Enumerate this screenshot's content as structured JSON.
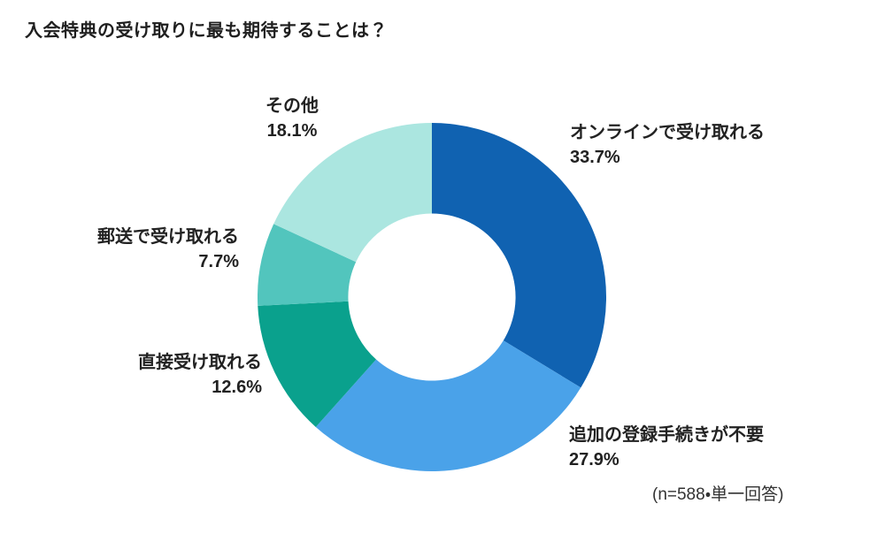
{
  "title": "入会特典の受け取りに最も期待することは？",
  "footnote": "(n=588・単一回答)",
  "chart_data": {
    "type": "pie",
    "variant": "donut",
    "unit": "%",
    "start_angle_deg": -90,
    "direction": "clockwise",
    "inner_radius_ratio": 0.48,
    "total": 100.0,
    "segments": [
      {
        "label": "オンラインで受け取れる",
        "value": 33.7,
        "value_label": "33.7%",
        "color": "#1062b1"
      },
      {
        "label": "追加の登録手続きが不要",
        "value": 27.9,
        "value_label": "27.9%",
        "color": "#4aa2e9"
      },
      {
        "label": "直接受け取れる",
        "value": 12.6,
        "value_label": "12.6%",
        "color": "#0aa18d"
      },
      {
        "label": "郵送で受け取れる",
        "value": 7.7,
        "value_label": "7.7%",
        "color": "#52c5bd"
      },
      {
        "label": "その他",
        "value": 18.1,
        "value_label": "18.1%",
        "color": "#abe6e0"
      }
    ]
  }
}
